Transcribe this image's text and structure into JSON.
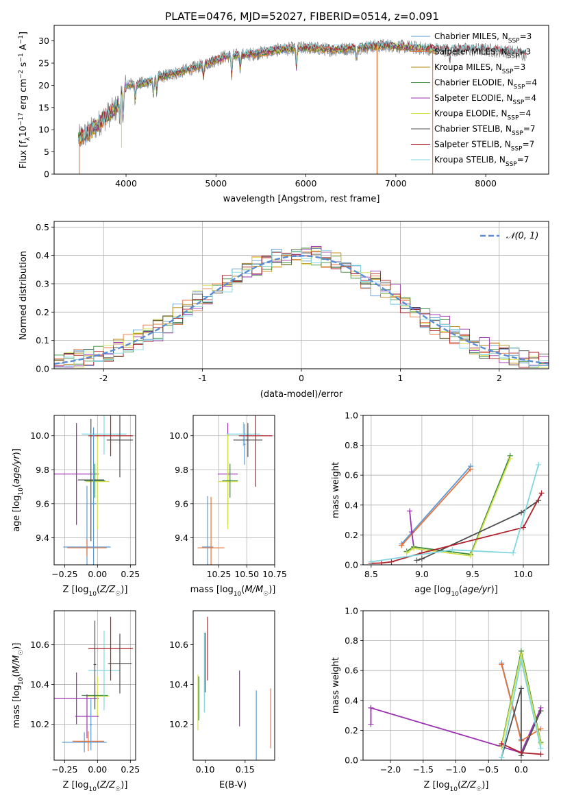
{
  "figure_title": "PLATE=0476, MJD=52027, FIBERID=0514, z=0.091",
  "colors": {
    "MILES_Chabrier": "#5B9BD5",
    "MILES_Salpeter": "#E8743B",
    "MILES_Kroupa": "#B8860B",
    "ELODIE_Chabrier": "#3C8C3C",
    "ELODIE_Salpeter": "#9B30B0",
    "ELODIE_Kroupa": "#D4E04A",
    "STELIB_Chabrier": "#4D4D4D",
    "STELIB_Salpeter": "#B0202A",
    "STELIB_Kroupa": "#7FD6E0",
    "data": "#7F7F7F",
    "gaussian": "#5B8BD5"
  },
  "chart_data": [
    {
      "id": "spectrum",
      "type": "line",
      "xlabel": "wavelength [Angstrom, rest frame]",
      "ylabel": "Flux [f_λ 10^-17 erg cm^-2 s^-1 A^-1]",
      "xlim": [
        3200,
        8700
      ],
      "ylim": [
        0,
        33.5
      ],
      "xticks": [
        4000,
        5000,
        6000,
        7000,
        8000
      ],
      "yticks": [
        0,
        5,
        10,
        15,
        20,
        25,
        30
      ],
      "grid": false,
      "legend_position": "upper-right",
      "legend": [
        {
          "model": "Chabrier MILES, N",
          "sub": "SSP",
          "n": "=3",
          "color_key": "MILES_Chabrier"
        },
        {
          "model": "Salpeter MILES, N",
          "sub": "SSP",
          "n": "=3",
          "color_key": "MILES_Salpeter"
        },
        {
          "model": "Kroupa MILES, N",
          "sub": "SSP",
          "n": "=3",
          "color_key": "MILES_Kroupa"
        },
        {
          "model": "Chabrier ELODIE, N",
          "sub": "SSP",
          "n": "=4",
          "color_key": "ELODIE_Chabrier"
        },
        {
          "model": "Salpeter ELODIE, N",
          "sub": "SSP",
          "n": "=4",
          "color_key": "ELODIE_Salpeter"
        },
        {
          "model": "Kroupa ELODIE, N",
          "sub": "SSP",
          "n": "=4",
          "color_key": "ELODIE_Kroupa"
        },
        {
          "model": "Chabrier STELIB, N",
          "sub": "SSP",
          "n": "=7",
          "color_key": "STELIB_Chabrier"
        },
        {
          "model": "Salpeter STELIB, N",
          "sub": "SSP",
          "n": "=7",
          "color_key": "STELIB_Salpeter"
        },
        {
          "model": "Kroupa STELIB, N",
          "sub": "SSP",
          "n": "=7",
          "color_key": "STELIB_Kroupa"
        }
      ],
      "continuum_points": [
        [
          3470,
          8
        ],
        [
          3600,
          9.5
        ],
        [
          3750,
          12.5
        ],
        [
          3900,
          15
        ],
        [
          4000,
          20
        ],
        [
          4200,
          20.5
        ],
        [
          4400,
          22
        ],
        [
          4600,
          23
        ],
        [
          4850,
          24.5
        ],
        [
          5100,
          26.5
        ],
        [
          5400,
          27
        ],
        [
          5700,
          28
        ],
        [
          6000,
          28.5
        ],
        [
          6300,
          28
        ],
        [
          6600,
          28.5
        ],
        [
          6900,
          29
        ],
        [
          7200,
          28.5
        ],
        [
          7500,
          28
        ],
        [
          7800,
          28
        ],
        [
          8000,
          28
        ],
        [
          8300,
          27.5
        ],
        [
          8450,
          27
        ]
      ],
      "absorption_features": [
        [
          3934,
          5
        ],
        [
          3969,
          6
        ],
        [
          4102,
          4
        ],
        [
          4304,
          4
        ],
        [
          4341,
          3
        ],
        [
          4861,
          3
        ],
        [
          5175,
          5
        ],
        [
          5270,
          3
        ],
        [
          5895,
          5
        ],
        [
          6563,
          3
        ],
        [
          7600,
          3
        ]
      ],
      "sky_spikes": [
        [
          3480,
          0
        ],
        [
          3950,
          6
        ],
        [
          6800,
          0
        ],
        [
          7410,
          0
        ],
        [
          6790,
          0
        ]
      ]
    },
    {
      "id": "residuals",
      "type": "histogram",
      "xlabel": "(data-model)/error",
      "ylabel": "Normed distribution",
      "xlim": [
        -2.5,
        2.5
      ],
      "ylim": [
        0,
        0.52
      ],
      "xticks": [
        -2,
        -1,
        0,
        1,
        2
      ],
      "yticks": [
        0.0,
        0.1,
        0.2,
        0.3,
        0.4,
        0.5
      ],
      "grid": true,
      "legend_position": "upper-right",
      "legend_label": "𝒩(0, 1)",
      "bin_width": 0.1
    },
    {
      "id": "age_vs_Z",
      "type": "errorbar",
      "xlabel": "Z [log10(Z/Z☉)]",
      "ylabel": "age [log10(age/yr)]",
      "xlim": [
        -0.33,
        0.29
      ],
      "ylim": [
        9.24,
        10.12
      ],
      "xticks": [
        -0.25,
        0.0,
        0.25
      ],
      "yticks": [
        9.4,
        9.6,
        9.8,
        10.0
      ],
      "grid": true,
      "points": [
        {
          "k": "MILES_Chabrier",
          "x": -0.08,
          "xe": 0.18,
          "y": 9.345,
          "ye": 0.36
        },
        {
          "k": "MILES_Salpeter",
          "x": -0.08,
          "xe": 0.15,
          "y": 9.34,
          "ye": 0.05
        },
        {
          "k": "ELODIE_Salpeter",
          "x": -0.16,
          "xe": 0.17,
          "y": 9.775,
          "ye": 0.3
        },
        {
          "k": "ELODIE_Kroupa",
          "x": 0.0,
          "xe": 0.09,
          "y": 9.73,
          "ye": 0.28
        },
        {
          "k": "ELODIE_Chabrier",
          "x": -0.02,
          "xe": 0.08,
          "y": 9.735,
          "ye": 0.1
        },
        {
          "k": "STELIB_Chabrier",
          "x": -0.05,
          "xe": 0.1,
          "y": 9.74,
          "ye": 0.36
        },
        {
          "k": "STELIB_Kroupa",
          "x": 0.05,
          "xe": 0.17,
          "y": 10.01,
          "ye": 0.12
        },
        {
          "k": "STELIB_Salpeter",
          "x": 0.1,
          "xe": 0.17,
          "y": 10.0,
          "ye": 0.12
        },
        {
          "k": "STELIB_Chabrier",
          "x": 0.17,
          "xe": 0.1,
          "y": 9.975,
          "ye": 0.22
        },
        {
          "k": "MILES_Chabrier",
          "x": -0.03,
          "xe": 0.02,
          "y": 9.6,
          "ye": 0.45
        }
      ]
    },
    {
      "id": "age_vs_mass",
      "type": "errorbar",
      "xlabel": "mass [log10(M/M☉)]",
      "ylabel": "",
      "xlim": [
        10.02,
        10.75
      ],
      "ylim": [
        9.24,
        10.12
      ],
      "xticks": [
        10.25,
        10.5,
        10.75
      ],
      "yticks": [
        9.4,
        9.6,
        9.8,
        10.0
      ],
      "grid": true,
      "points": [
        {
          "k": "MILES_Chabrier",
          "x": 10.15,
          "xe": 0.05,
          "y": 9.345,
          "ye": 0.3
        },
        {
          "k": "MILES_Salpeter",
          "x": 10.18,
          "xe": 0.12,
          "y": 9.34,
          "ye": 0.3
        },
        {
          "k": "ELODIE_Salpeter",
          "x": 10.33,
          "xe": 0.09,
          "y": 9.775,
          "ye": 0.3
        },
        {
          "k": "ELODIE_Kroupa",
          "x": 10.33,
          "xe": 0.09,
          "y": 9.73,
          "ye": 0.28
        },
        {
          "k": "ELODIE_Chabrier",
          "x": 10.35,
          "xe": 0.07,
          "y": 9.735,
          "ye": 0.1
        },
        {
          "k": "STELIB_Kroupa",
          "x": 10.47,
          "xe": 0.15,
          "y": 10.01,
          "ye": 0.07
        },
        {
          "k": "STELIB_Salpeter",
          "x": 10.58,
          "xe": 0.15,
          "y": 10.0,
          "ye": 0.3
        },
        {
          "k": "STELIB_Chabrier",
          "x": 10.51,
          "xe": 0.13,
          "y": 9.975,
          "ye": 0.1
        },
        {
          "k": "MILES_Chabrier",
          "x": 10.48,
          "xe": 0.01,
          "y": 9.95,
          "ye": 0.12
        }
      ]
    },
    {
      "id": "weight_vs_age",
      "type": "line",
      "xlabel": "age [log10(age/yr)]",
      "ylabel": "mass weight",
      "xlim": [
        8.42,
        10.25
      ],
      "ylim": [
        0,
        1.0
      ],
      "xticks": [
        8.5,
        9.0,
        9.5,
        10.0
      ],
      "yticks": [
        0.0,
        0.2,
        0.4,
        0.6,
        0.8,
        1.0
      ],
      "grid": true,
      "series": [
        {
          "k": "MILES_Chabrier",
          "x": [
            8.8,
            9.48
          ],
          "y": [
            0.14,
            0.66
          ]
        },
        {
          "k": "MILES_Salpeter",
          "x": [
            8.8,
            9.48
          ],
          "y": [
            0.13,
            0.64
          ]
        },
        {
          "k": "ELODIE_Salpeter",
          "x": [
            8.88,
            8.9,
            8.92
          ],
          "y": [
            0.36,
            0.22,
            0.12
          ]
        },
        {
          "k": "ELODIE_Chabrier",
          "x": [
            8.85,
            8.92,
            9.48,
            9.87
          ],
          "y": [
            0.09,
            0.12,
            0.07,
            0.73
          ]
        },
        {
          "k": "ELODIE_Kroupa",
          "x": [
            8.85,
            8.92,
            9.48,
            9.87
          ],
          "y": [
            0.08,
            0.11,
            0.06,
            0.71
          ]
        },
        {
          "k": "STELIB_Chabrier",
          "x": [
            8.95,
            9.0,
            9.98,
            10.15
          ],
          "y": [
            0.03,
            0.04,
            0.35,
            0.43
          ]
        },
        {
          "k": "STELIB_Salpeter",
          "x": [
            8.5,
            8.6,
            8.7,
            9.0,
            10.0,
            10.18
          ],
          "y": [
            0.01,
            0.012,
            0.02,
            0.08,
            0.25,
            0.48
          ]
        },
        {
          "k": "STELIB_Kroupa",
          "x": [
            8.5,
            9.3,
            9.9,
            10.15
          ],
          "y": [
            0.02,
            0.1,
            0.08,
            0.67
          ]
        }
      ]
    },
    {
      "id": "mass_vs_Z",
      "type": "errorbar",
      "xlabel": "Z [log10(Z/Z☉)]",
      "ylabel": "mass [log10(M/M☉)]",
      "xlim": [
        -0.33,
        0.29
      ],
      "ylim": [
        10.02,
        10.77
      ],
      "xticks": [
        -0.25,
        0.0,
        0.25
      ],
      "yticks": [
        10.2,
        10.4,
        10.6
      ],
      "grid": true,
      "points": [
        {
          "k": "MILES_Chabrier",
          "x": -0.1,
          "xe": 0.17,
          "y": 10.11,
          "ye": 0.05
        },
        {
          "k": "MILES_Salpeter",
          "x": -0.07,
          "xe": 0.12,
          "y": 10.115,
          "ye": 0.05
        },
        {
          "k": "ELODIE_Salpeter",
          "x": -0.16,
          "xe": 0.17,
          "y": 10.33,
          "ye": 0.13
        },
        {
          "k": "ELODIE_Kroupa",
          "x": 0.0,
          "xe": 0.09,
          "y": 10.34,
          "ye": 0.1
        },
        {
          "k": "ELODIE_Chabrier",
          "x": -0.02,
          "xe": 0.1,
          "y": 10.345,
          "ye": 0.07
        },
        {
          "k": "STELIB_Kroupa",
          "x": 0.05,
          "xe": 0.12,
          "y": 10.47,
          "ye": 0.2
        },
        {
          "k": "STELIB_Salpeter",
          "x": 0.1,
          "xe": 0.17,
          "y": 10.58,
          "ye": 0.16
        },
        {
          "k": "STELIB_Chabrier",
          "x": 0.17,
          "xe": 0.09,
          "y": 10.505,
          "ye": 0.15
        },
        {
          "k": "STELIB_Chabrier",
          "x": -0.02,
          "xe": 0.01,
          "y": 10.5,
          "ye": 0.22
        },
        {
          "k": "ELODIE_Salpeter",
          "x": -0.08,
          "xe": 0.09,
          "y": 10.24,
          "ye": 0.11
        },
        {
          "k": "MILES_Chabrier",
          "x": -0.05,
          "xe": 0.01,
          "y": 10.2,
          "ye": 0.13
        }
      ]
    },
    {
      "id": "mass_vs_EBV",
      "type": "errorbar",
      "xlabel": "E(B-V)",
      "ylabel": "",
      "xlim": [
        0.085,
        0.187
      ],
      "ylim": [
        10.02,
        10.77
      ],
      "xticks": [
        0.1,
        0.15
      ],
      "yticks": [
        10.2,
        10.4,
        10.6
      ],
      "grid": false,
      "points": [
        {
          "k": "ELODIE_Kroupa",
          "x": 0.091,
          "xe": 0.0,
          "y": 10.31,
          "ye": 0.14
        },
        {
          "k": "ELODIE_Chabrier",
          "x": 0.092,
          "xe": 0.0,
          "y": 10.33,
          "ye": 0.11
        },
        {
          "k": "STELIB_Kroupa",
          "x": 0.099,
          "xe": 0.0,
          "y": 10.46,
          "ye": 0.2
        },
        {
          "k": "STELIB_Chabrier",
          "x": 0.1,
          "xe": 0.0,
          "y": 10.51,
          "ye": 0.15
        },
        {
          "k": "STELIB_Salpeter",
          "x": 0.103,
          "xe": 0.0,
          "y": 10.58,
          "ye": 0.16
        },
        {
          "k": "ELODIE_Salpeter",
          "x": 0.143,
          "xe": 0.0,
          "y": 10.33,
          "ye": 0.14
        },
        {
          "k": "MILES_Chabrier",
          "x": 0.164,
          "xe": 0.0,
          "y": 10.16,
          "ye": 0.21
        },
        {
          "k": "MILES_Salpeter",
          "x": 0.182,
          "xe": 0.0,
          "y": 10.23,
          "ye": 0.15
        }
      ]
    },
    {
      "id": "weight_vs_Z",
      "type": "line",
      "xlabel": "Z [log10(Z/Z☉)]",
      "ylabel": "mass weight",
      "xlim": [
        -2.42,
        0.42
      ],
      "ylim": [
        0,
        1.0
      ],
      "xticks": [
        -2.0,
        -1.5,
        -1.0,
        -0.5,
        0.0
      ],
      "yticks": [
        0.0,
        0.2,
        0.4,
        0.6,
        0.8,
        1.0
      ],
      "grid": true,
      "series": [
        {
          "k": "ELODIE_Salpeter",
          "x": [
            -2.3,
            -0.3,
            0.0,
            0.3
          ],
          "y": [
            0.35,
            0.09,
            0.05,
            0.35
          ]
        },
        {
          "k": "ELODIE_Salpeter",
          "x": [
            -2.3,
            -2.3
          ],
          "y": [
            0.24,
            0.35
          ]
        },
        {
          "k": "MILES_Chabrier",
          "x": [
            -0.3,
            0.0
          ],
          "y": [
            0.65,
            0.14
          ]
        },
        {
          "k": "MILES_Salpeter",
          "x": [
            -0.3,
            0.0,
            0.3
          ],
          "y": [
            0.64,
            0.13,
            0.21
          ]
        },
        {
          "k": "ELODIE_Chabrier",
          "x": [
            -0.3,
            0.0,
            0.3
          ],
          "y": [
            0.1,
            0.73,
            0.12
          ]
        },
        {
          "k": "ELODIE_Kroupa",
          "x": [
            -0.3,
            0.0,
            0.3
          ],
          "y": [
            0.09,
            0.71,
            0.11
          ]
        },
        {
          "k": "STELIB_Chabrier",
          "x": [
            -0.3,
            0.0,
            0.0,
            0.3
          ],
          "y": [
            0.02,
            0.48,
            0.03,
            0.33
          ]
        },
        {
          "k": "STELIB_Salpeter",
          "x": [
            -0.3,
            0.0,
            0.3
          ],
          "y": [
            0.11,
            0.05,
            0.04
          ]
        },
        {
          "k": "STELIB_Kroupa",
          "x": [
            -0.3,
            0.0,
            0.3
          ],
          "y": [
            0.02,
            0.67,
            0.08
          ]
        }
      ]
    }
  ]
}
